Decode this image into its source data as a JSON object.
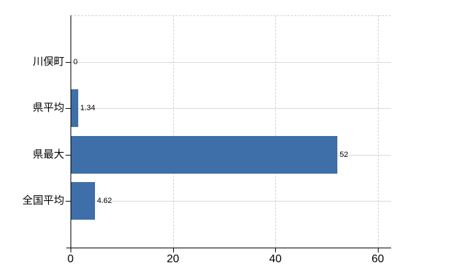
{
  "chart_data": {
    "type": "bar",
    "orientation": "horizontal",
    "title": "",
    "xlabel": "",
    "ylabel": "",
    "categories": [
      "川俣町",
      "県平均",
      "県最大",
      "全国平均"
    ],
    "values": [
      0,
      1.34,
      52,
      4.62
    ],
    "value_labels": [
      "0",
      "1.34",
      "52",
      "4.62"
    ],
    "xticks": [
      0,
      20,
      40,
      60
    ],
    "xtick_labels": [
      "0",
      "20",
      "40",
      "60"
    ],
    "xlim": [
      0,
      62.6
    ],
    "grid": true,
    "legend": false,
    "bar_color": "#3f6fa8",
    "gridline_color": "#d9d9d9",
    "axis_color": "#000000",
    "background_color": "#ffffff"
  }
}
